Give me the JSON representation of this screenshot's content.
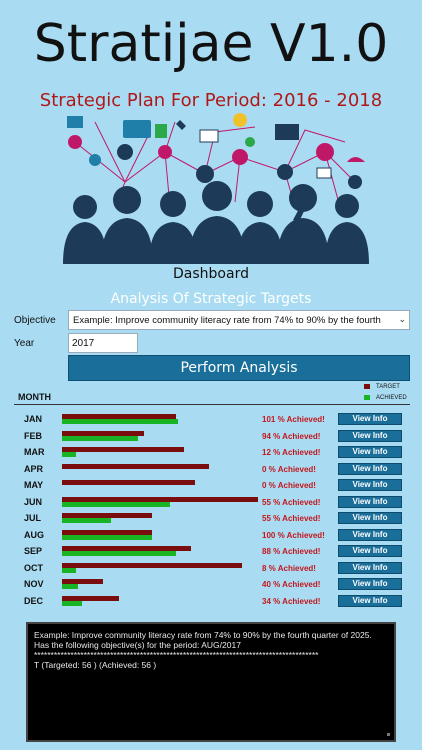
{
  "app": {
    "title": "Stratijae V1.0",
    "plan_title": "Strategic Plan For Period: 2016 - 2018"
  },
  "dashboard": {
    "title": "Dashboard",
    "analysis_title": "Analysis Of Strategic Targets"
  },
  "form": {
    "objective_label": "Objective",
    "objective_value": "Example: Improve community literacy rate from 74% to 90% by the fourth",
    "year_label": "Year",
    "year_value": "2017",
    "perform_button": "Perform Analysis"
  },
  "legend": {
    "target": "TARGET",
    "achieved": "ACHIEVED",
    "target_color": "#7a0d0d",
    "achieved_color": "#19b423"
  },
  "table": {
    "month_header": "MONTH",
    "view_label": "View Info",
    "rows": [
      {
        "month": "JAN",
        "target": 0.58,
        "achieved": 0.59,
        "pct": "101 % Achieved!"
      },
      {
        "month": "FEB",
        "target": 0.42,
        "achieved": 0.39,
        "pct": "94 % Achieved!"
      },
      {
        "month": "MAR",
        "target": 0.62,
        "achieved": 0.07,
        "pct": "12 % Achieved!"
      },
      {
        "month": "APR",
        "target": 0.75,
        "achieved": 0.0,
        "pct": "0 % Achieved!"
      },
      {
        "month": "MAY",
        "target": 0.68,
        "achieved": 0.0,
        "pct": "0 % Achieved!"
      },
      {
        "month": "JUN",
        "target": 1.0,
        "achieved": 0.55,
        "pct": "55 % Achieved!"
      },
      {
        "month": "JUL",
        "target": 0.46,
        "achieved": 0.25,
        "pct": "55 % Achieved!"
      },
      {
        "month": "AUG",
        "target": 0.46,
        "achieved": 0.46,
        "pct": "100 % Achieved!"
      },
      {
        "month": "SEP",
        "target": 0.66,
        "achieved": 0.58,
        "pct": "88 % Achieved!"
      },
      {
        "month": "OCT",
        "target": 0.92,
        "achieved": 0.07,
        "pct": "8 % Achieved!"
      },
      {
        "month": "NOV",
        "target": 0.21,
        "achieved": 0.08,
        "pct": "40 % Achieved!"
      },
      {
        "month": "DEC",
        "target": 0.29,
        "achieved": 0.1,
        "pct": "34 % Achieved!"
      }
    ]
  },
  "console": {
    "line1": "Example: Improve community literacy rate from 74% to 90% by the fourth quarter of 2025. Has the following objective(s) for the period: AUG/2017",
    "stars": "**************************************************************************************",
    "line2": "T (Targeted: 56 ) (Achieved: 56 )"
  }
}
